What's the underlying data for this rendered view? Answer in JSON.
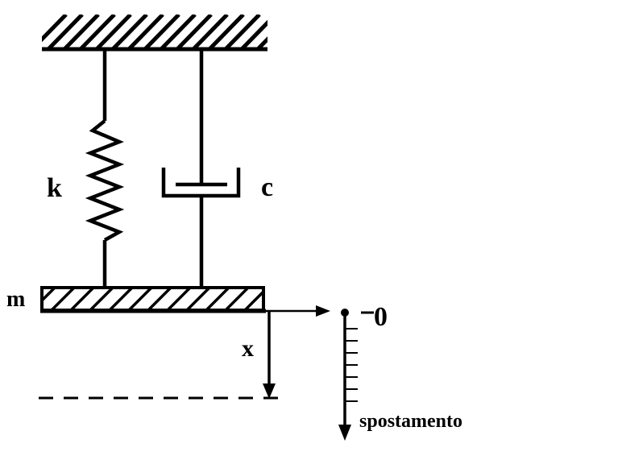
{
  "diagram": {
    "title": "",
    "labels": {
      "stiffness": "k",
      "damping": "c",
      "mass": "m",
      "displacement_var": "x",
      "zero_mark": "0",
      "axis_label": "spostamento"
    }
  },
  "colors": {
    "ink": "#000000",
    "background": "#ffffff"
  },
  "icons": {
    "ground": "hatched-ground-icon",
    "spring": "zigzag-spring-icon",
    "damper": "dashpot-icon",
    "mass": "hatched-block-icon",
    "arrow": "arrow-icon"
  }
}
